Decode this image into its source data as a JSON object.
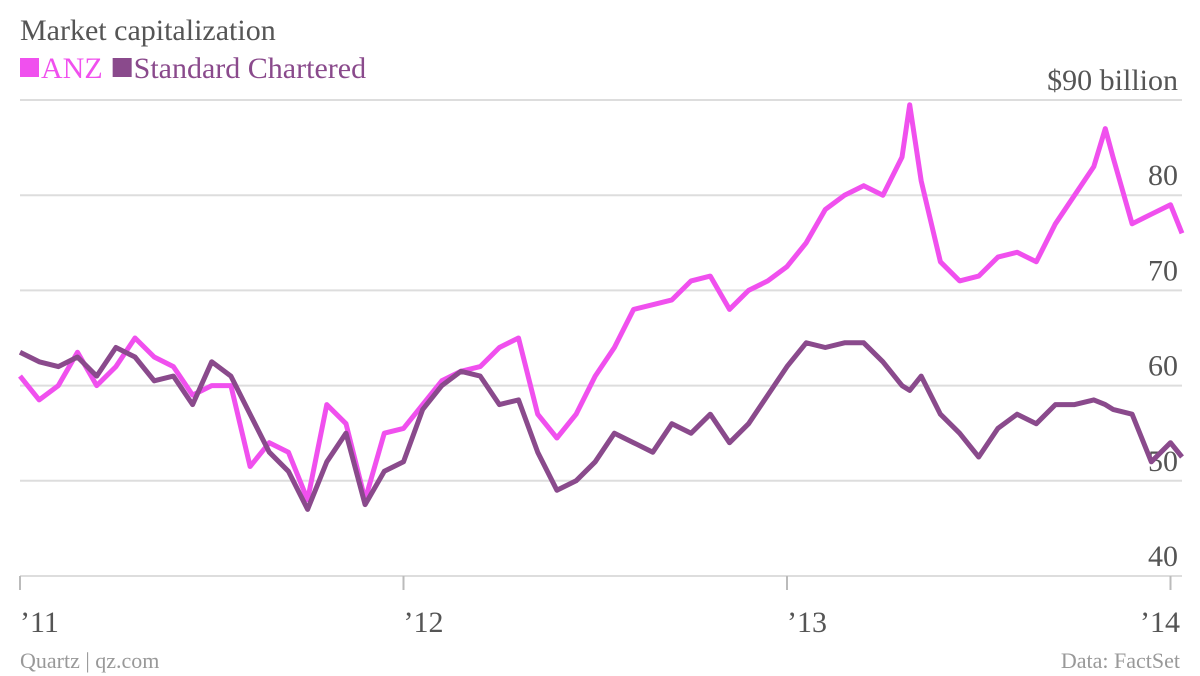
{
  "chart_data": {
    "type": "line",
    "title": "Market capitalization",
    "source": "Data: FactSet",
    "credit": "Quartz | qz.com",
    "x": [
      2011.0,
      2011.05,
      2011.1,
      2011.15,
      2011.2,
      2011.25,
      2011.3,
      2011.35,
      2011.4,
      2011.45,
      2011.5,
      2011.55,
      2011.6,
      2011.65,
      2011.7,
      2011.75,
      2011.8,
      2011.85,
      2011.9,
      2011.95,
      2012.0,
      2012.05,
      2012.1,
      2012.15,
      2012.2,
      2012.25,
      2012.3,
      2012.35,
      2012.4,
      2012.45,
      2012.5,
      2012.55,
      2012.6,
      2012.65,
      2012.7,
      2012.75,
      2012.8,
      2012.85,
      2012.9,
      2012.95,
      2013.0,
      2013.05,
      2013.1,
      2013.15,
      2013.2,
      2013.25,
      2013.3,
      2013.32,
      2013.35,
      2013.4,
      2013.45,
      2013.5,
      2013.55,
      2013.6,
      2013.65,
      2013.7,
      2013.75,
      2013.8,
      2013.83,
      2013.85,
      2013.9,
      2013.95,
      2014.0,
      2014.03
    ],
    "series": [
      {
        "name": "ANZ",
        "color": "#f050ee",
        "values": [
          61,
          58.5,
          60,
          63.5,
          60,
          62,
          65,
          63,
          62,
          59,
          60,
          60,
          51.5,
          54,
          53,
          48,
          58,
          56,
          48,
          55,
          55.5,
          58,
          60.5,
          61.5,
          62,
          64,
          65,
          57,
          54.5,
          57,
          61,
          64,
          68,
          68.5,
          69,
          71,
          71.5,
          68,
          70,
          71,
          72.5,
          75,
          78.5,
          80,
          81,
          80,
          84,
          89.5,
          81.5,
          73,
          71,
          71.5,
          73.5,
          74,
          73,
          77,
          80,
          83,
          87,
          84,
          77,
          78,
          79,
          76
        ]
      },
      {
        "name": "Standard Chartered",
        "color": "#8a4a8c",
        "values": [
          63.5,
          62.5,
          62,
          63,
          61,
          64,
          63,
          60.5,
          61,
          58,
          62.5,
          61,
          57,
          53,
          51,
          47,
          52,
          55,
          47.5,
          51,
          52,
          57.5,
          60,
          61.5,
          61,
          58,
          58.5,
          53,
          49,
          50,
          52,
          55,
          54,
          53,
          56,
          55,
          57,
          54,
          56,
          59,
          62,
          64.5,
          64,
          64.5,
          64.5,
          62.5,
          60,
          59.5,
          61,
          57,
          55,
          52.5,
          55.5,
          57,
          56,
          58,
          58,
          58.5,
          58,
          57.5,
          57,
          52,
          54,
          52.5
        ]
      }
    ],
    "xlim": [
      2011,
      2014.03
    ],
    "xticks": [
      {
        "value": 2011,
        "label": "’11"
      },
      {
        "value": 2012,
        "label": "’12"
      },
      {
        "value": 2013,
        "label": "’13"
      },
      {
        "value": 2014,
        "label": "’14"
      }
    ],
    "ylim": [
      40,
      90
    ],
    "yticks": [
      40,
      50,
      60,
      70,
      80,
      {
        "value": 90,
        "label": "$90 billion"
      }
    ],
    "grid": true
  }
}
